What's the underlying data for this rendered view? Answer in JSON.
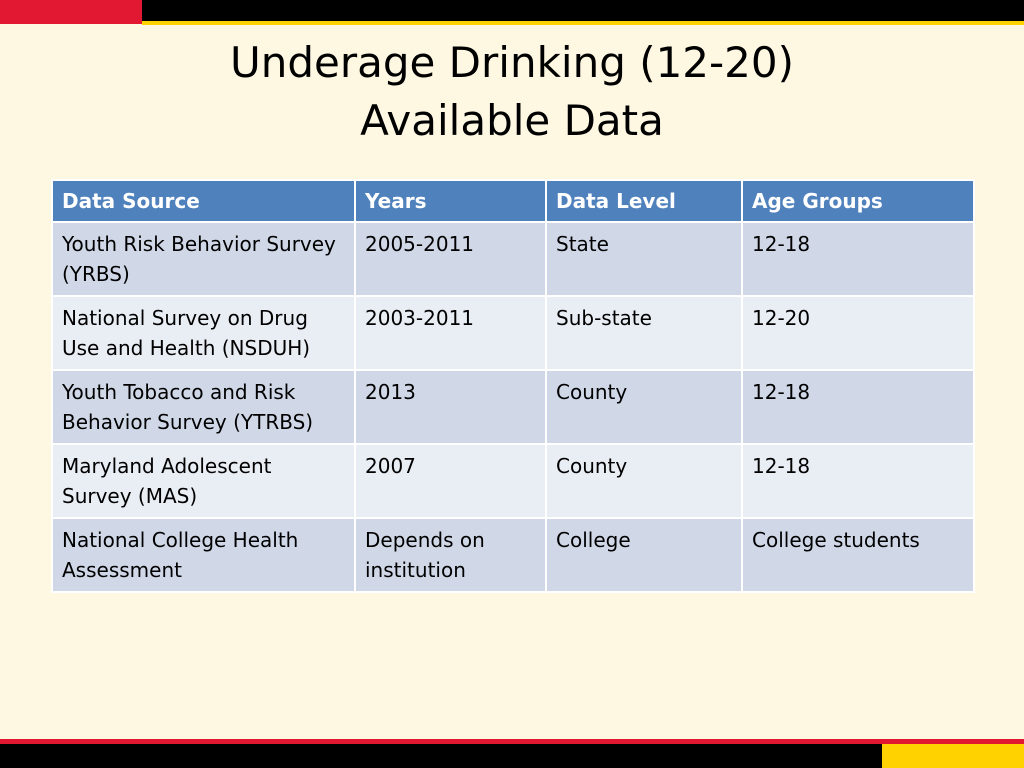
{
  "slide": {
    "title_line1": "Underage Drinking (12-20)",
    "title_line2": "Available Data"
  },
  "table": {
    "headers": [
      "Data Source",
      "Years",
      "Data Level",
      "Age Groups"
    ],
    "rows": [
      [
        "Youth Risk Behavior Survey (YRBS)",
        "2005-2011",
        "State",
        "12-18"
      ],
      [
        "National Survey on Drug Use and Health (NSDUH)",
        "2003-2011",
        "Sub-state",
        "12-20"
      ],
      [
        "Youth Tobacco and Risk Behavior Survey (YTRBS)",
        "2013",
        "County",
        "12-18"
      ],
      [
        "Maryland Adolescent Survey (MAS)",
        "2007",
        "County",
        "12-18"
      ],
      [
        "National College Health Assessment",
        "Depends on institution",
        "College",
        "College students"
      ]
    ]
  },
  "colors": {
    "background": "#fef8e3",
    "header_fill": "#4f81bd",
    "row_fill_odd": "#d0d8e8",
    "row_fill_even": "#e9edf4",
    "accent_red": "#e21833",
    "accent_gold": "#ffd200"
  }
}
